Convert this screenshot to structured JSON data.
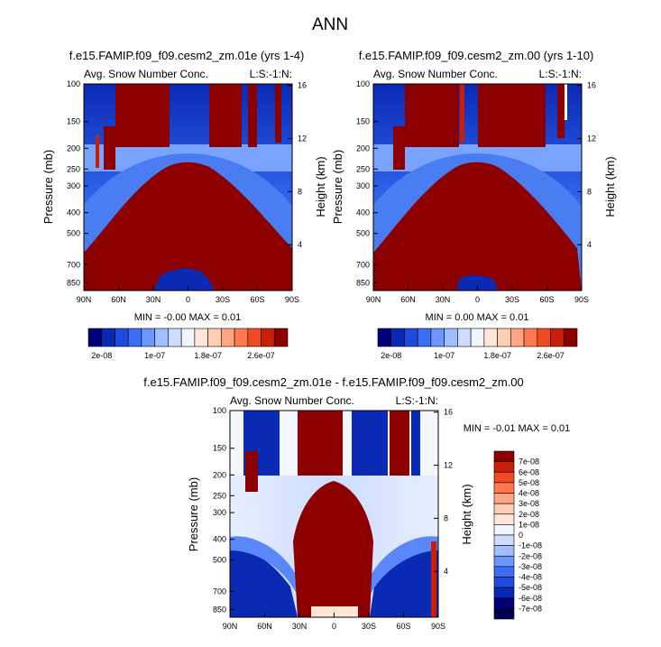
{
  "page": {
    "title": "ANN"
  },
  "colors": {
    "blue_red_scale": [
      "#00007a",
      "#0a28b4",
      "#1e4bdc",
      "#3c6ef5",
      "#6e96ff",
      "#a0bdff",
      "#cddcff",
      "#f0f5ff",
      "#ffe6d7",
      "#ffcdb4",
      "#ffa582",
      "#ff7850",
      "#f04b23",
      "#c81e0a",
      "#8c0000"
    ]
  },
  "chart_data": [
    {
      "type": "heatmap",
      "id": "panel1",
      "title": "f.e15.FAMIP.f09_f09.cesm2_zm.01e (yrs 1-4)",
      "left_label": "Avg. Snow Number Conc.",
      "right_label": "L:S:-1:N:",
      "xlabel": "",
      "ylabel": "Pressure (mb)",
      "ylabel_right": "Height (km)",
      "x_ticks": [
        "90N",
        "60N",
        "30N",
        "0",
        "30S",
        "60S",
        "90S"
      ],
      "y_ticks": [
        "100",
        "150",
        "200",
        "250",
        "300",
        "400",
        "500",
        "700",
        "850"
      ],
      "y_ticks_right": [
        "16",
        "12",
        "8",
        "4"
      ],
      "min_max": "MIN = -0.00   MAX =  0.01",
      "colorbar": {
        "orientation": "horizontal",
        "labels": [
          "2e-08",
          "1e-07",
          "1.8e-07",
          "2.6e-07"
        ]
      }
    },
    {
      "type": "heatmap",
      "id": "panel2",
      "title": "f.e15.FAMIP.f09_f09.cesm2_zm.00 (yrs 1-10)",
      "left_label": "Avg. Snow Number Conc.",
      "right_label": "L:S:-1:N:",
      "xlabel": "",
      "ylabel": "Pressure (mb)",
      "ylabel_right": "Height (km)",
      "x_ticks": [
        "90N",
        "60N",
        "30N",
        "0",
        "30S",
        "60S",
        "90S"
      ],
      "y_ticks": [
        "100",
        "150",
        "200",
        "250",
        "300",
        "400",
        "500",
        "700",
        "850"
      ],
      "y_ticks_right": [
        "16",
        "12",
        "8",
        "4"
      ],
      "min_max": "MIN =  0.00   MAX =  0.01",
      "colorbar": {
        "orientation": "horizontal",
        "labels": [
          "2e-08",
          "1e-07",
          "1.8e-07",
          "2.6e-07"
        ]
      }
    },
    {
      "type": "heatmap",
      "id": "panel3",
      "title": "f.e15.FAMIP.f09_f09.cesm2_zm.01e - f.e15.FAMIP.f09_f09.cesm2_zm.00",
      "left_label": "Avg. Snow Number Conc.",
      "right_label": "L:S:-1:N:",
      "xlabel": "",
      "ylabel": "Pressure (mb)",
      "ylabel_right": "Height (km)",
      "x_ticks": [
        "90N",
        "60N",
        "30N",
        "0",
        "30S",
        "60S",
        "90S"
      ],
      "y_ticks": [
        "100",
        "150",
        "200",
        "250",
        "300",
        "400",
        "500",
        "700",
        "850"
      ],
      "y_ticks_right": [
        "16",
        "12",
        "8",
        "4"
      ],
      "min_max": "MIN = -0.01   MAX =  0.01",
      "colorbar": {
        "orientation": "vertical",
        "labels": [
          "7e-08",
          "6e-08",
          "5e-08",
          "4e-08",
          "3e-08",
          "2e-08",
          "1e-08",
          "0",
          "-1e-08",
          "-2e-08",
          "-3e-08",
          "-4e-08",
          "-5e-08",
          "-6e-08",
          "-7e-08"
        ]
      }
    }
  ]
}
